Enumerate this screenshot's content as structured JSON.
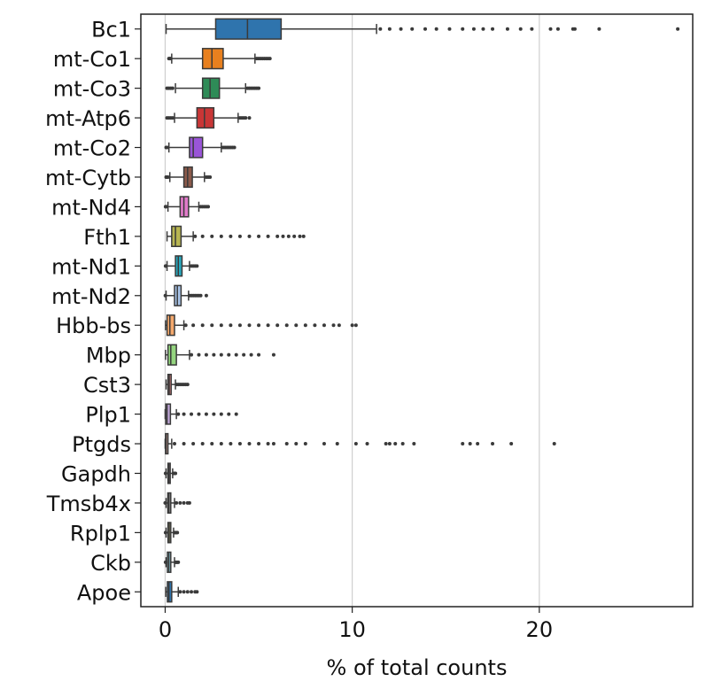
{
  "chart_data": {
    "type": "boxplot",
    "orientation": "horizontal",
    "xlabel": "% of total counts",
    "ylabel": "",
    "title": "",
    "xlim": [
      -1.3,
      28.2
    ],
    "xticks": [
      0,
      10,
      20
    ],
    "grid": {
      "x": true,
      "y": false
    },
    "legend": "none",
    "genes": [
      {
        "name": "Bc1",
        "color": "#2f74ad",
        "box": {
          "whislo": 0.05,
          "q1": 2.7,
          "med": 4.4,
          "q3": 6.2,
          "whishi": 11.3
        },
        "outliers": [
          11.5,
          12.0,
          12.6,
          13.2,
          13.9,
          14.5,
          15.2,
          15.9,
          16.5,
          17.0,
          17.5,
          18.3,
          19.0,
          19.6,
          20.6,
          21.0,
          21.8,
          21.9,
          23.2,
          27.4
        ]
      },
      {
        "name": "mt-Co1",
        "color": "#e8801f",
        "box": {
          "whislo": 0.35,
          "q1": 2.0,
          "med": 2.5,
          "q3": 3.1,
          "whishi": 4.8
        },
        "outliers": [
          0.2,
          0.25,
          0.3,
          4.9,
          5.0,
          5.1,
          5.2,
          5.3,
          5.4,
          5.5,
          5.6
        ]
      },
      {
        "name": "mt-Co3",
        "color": "#2e8b57",
        "box": {
          "whislo": 0.55,
          "q1": 2.0,
          "med": 2.4,
          "q3": 2.9,
          "whishi": 4.3
        },
        "outliers": [
          0.1,
          0.2,
          0.3,
          0.4,
          4.4,
          4.5,
          4.6,
          4.7,
          4.8,
          4.9,
          5.0
        ]
      },
      {
        "name": "mt-Atp6",
        "color": "#c93636",
        "box": {
          "whislo": 0.5,
          "q1": 1.7,
          "med": 2.1,
          "q3": 2.6,
          "whishi": 3.9
        },
        "outliers": [
          0.1,
          0.2,
          0.3,
          0.4,
          4.0,
          4.1,
          4.2,
          4.3,
          4.5
        ]
      },
      {
        "name": "mt-Co2",
        "color": "#9a55d8",
        "box": {
          "whislo": 0.2,
          "q1": 1.3,
          "med": 1.5,
          "q3": 2.0,
          "whishi": 3.0
        },
        "outliers": [
          0.05,
          0.1,
          3.1,
          3.2,
          3.3,
          3.4,
          3.5,
          3.6,
          3.7
        ]
      },
      {
        "name": "mt-Cytb",
        "color": "#8b5a4a",
        "box": {
          "whislo": 0.25,
          "q1": 1.0,
          "med": 1.2,
          "q3": 1.45,
          "whishi": 2.1
        },
        "outliers": [
          0.05,
          0.1,
          0.15,
          2.2,
          2.3,
          2.4
        ]
      },
      {
        "name": "mt-Nd4",
        "color": "#e17bc9",
        "box": {
          "whislo": 0.15,
          "q1": 0.8,
          "med": 1.0,
          "q3": 1.25,
          "whishi": 1.8
        },
        "outliers": [
          0.02,
          0.05,
          1.9,
          2.0,
          2.1,
          2.2,
          2.3
        ]
      },
      {
        "name": "Fth1",
        "color": "#b8b652",
        "box": {
          "whislo": 0.1,
          "q1": 0.35,
          "med": 0.55,
          "q3": 0.85,
          "whishi": 1.5
        },
        "outliers": [
          1.6,
          2.0,
          2.5,
          3.0,
          3.5,
          4.0,
          4.5,
          5.0,
          5.5,
          6.0,
          6.3,
          6.6,
          6.9,
          7.2,
          7.4
        ]
      },
      {
        "name": "mt-Nd1",
        "color": "#27a8bd",
        "box": {
          "whislo": 0.1,
          "q1": 0.55,
          "med": 0.7,
          "q3": 0.9,
          "whishi": 1.3
        },
        "outliers": [
          0.02,
          0.05,
          1.4,
          1.5,
          1.6,
          1.7
        ]
      },
      {
        "name": "mt-Nd2",
        "color": "#a9c4e8",
        "box": {
          "whislo": 0.05,
          "q1": 0.5,
          "med": 0.65,
          "q3": 0.85,
          "whishi": 1.25
        },
        "outliers": [
          0.01,
          1.3,
          1.4,
          1.5,
          1.6,
          1.7,
          1.8,
          1.9,
          2.2
        ]
      },
      {
        "name": "Hbb-bs",
        "color": "#f5a96d",
        "box": {
          "whislo": 0.02,
          "q1": 0.1,
          "med": 0.25,
          "q3": 0.5,
          "whishi": 1.0
        },
        "outliers": [
          1.1,
          1.5,
          2.0,
          2.5,
          3.0,
          3.5,
          4.0,
          4.5,
          5.0,
          5.5,
          6.0,
          6.5,
          7.0,
          7.5,
          8.0,
          8.5,
          9.0,
          9.3,
          10.0,
          10.2
        ]
      },
      {
        "name": "Mbp",
        "color": "#94d57f",
        "box": {
          "whislo": 0.02,
          "q1": 0.15,
          "med": 0.3,
          "q3": 0.6,
          "whishi": 1.3
        },
        "outliers": [
          1.4,
          1.8,
          2.2,
          2.6,
          3.0,
          3.4,
          3.8,
          4.2,
          4.6,
          5.0,
          5.8
        ]
      },
      {
        "name": "Cst3",
        "color": "#f08a87",
        "box": {
          "whislo": 0.05,
          "q1": 0.15,
          "med": 0.22,
          "q3": 0.32,
          "whishi": 0.55
        },
        "outliers": [
          0.6,
          0.7,
          0.8,
          0.9,
          1.0,
          1.1,
          1.2
        ]
      },
      {
        "name": "Plp1",
        "color": "#c0a7d8",
        "box": {
          "whislo": 0.0,
          "q1": 0.03,
          "med": 0.1,
          "q3": 0.28,
          "whishi": 0.6
        },
        "outliers": [
          0.7,
          1.0,
          1.4,
          1.8,
          2.2,
          2.6,
          3.0,
          3.4,
          3.8
        ]
      },
      {
        "name": "Ptgds",
        "color": "#c49a8f",
        "box": {
          "whislo": 0.0,
          "q1": 0.02,
          "med": 0.05,
          "q3": 0.15,
          "whishi": 0.35
        },
        "outliers": [
          0.5,
          1.0,
          1.5,
          2.0,
          2.5,
          3.0,
          3.5,
          4.0,
          4.5,
          5.0,
          5.5,
          5.8,
          6.5,
          7.0,
          7.5,
          8.5,
          9.2,
          10.2,
          10.8,
          11.8,
          12.0,
          12.3,
          12.7,
          13.3,
          15.9,
          16.3,
          16.7,
          17.5,
          18.5,
          20.8
        ]
      },
      {
        "name": "Gapdh",
        "color": "#f2b5d9",
        "box": {
          "whislo": 0.05,
          "q1": 0.15,
          "med": 0.2,
          "q3": 0.27,
          "whishi": 0.4
        },
        "outliers": [
          0.02,
          0.45,
          0.5,
          0.55
        ]
      },
      {
        "name": "Tmsb4x",
        "color": "#9a9a9a",
        "box": {
          "whislo": 0.05,
          "q1": 0.14,
          "med": 0.2,
          "q3": 0.3,
          "whishi": 0.5
        },
        "outliers": [
          0.0,
          0.6,
          0.8,
          1.0,
          1.2,
          1.3
        ]
      },
      {
        "name": "Rplp1",
        "color": "#d8d585",
        "box": {
          "whislo": 0.05,
          "q1": 0.15,
          "med": 0.22,
          "q3": 0.3,
          "whishi": 0.45
        },
        "outliers": [
          0.02,
          0.5,
          0.55,
          0.6,
          0.65
        ]
      },
      {
        "name": "Ckb",
        "color": "#8ed4e3",
        "box": {
          "whislo": 0.05,
          "q1": 0.12,
          "med": 0.2,
          "q3": 0.3,
          "whishi": 0.5
        },
        "outliers": [
          0.02,
          0.55,
          0.6,
          0.65,
          0.7
        ]
      },
      {
        "name": "Apoe",
        "color": "#2f74ad",
        "box": {
          "whislo": 0.03,
          "q1": 0.12,
          "med": 0.2,
          "q3": 0.35,
          "whishi": 0.7
        },
        "outliers": [
          0.8,
          1.0,
          1.2,
          1.4,
          1.6,
          1.7
        ]
      }
    ]
  }
}
